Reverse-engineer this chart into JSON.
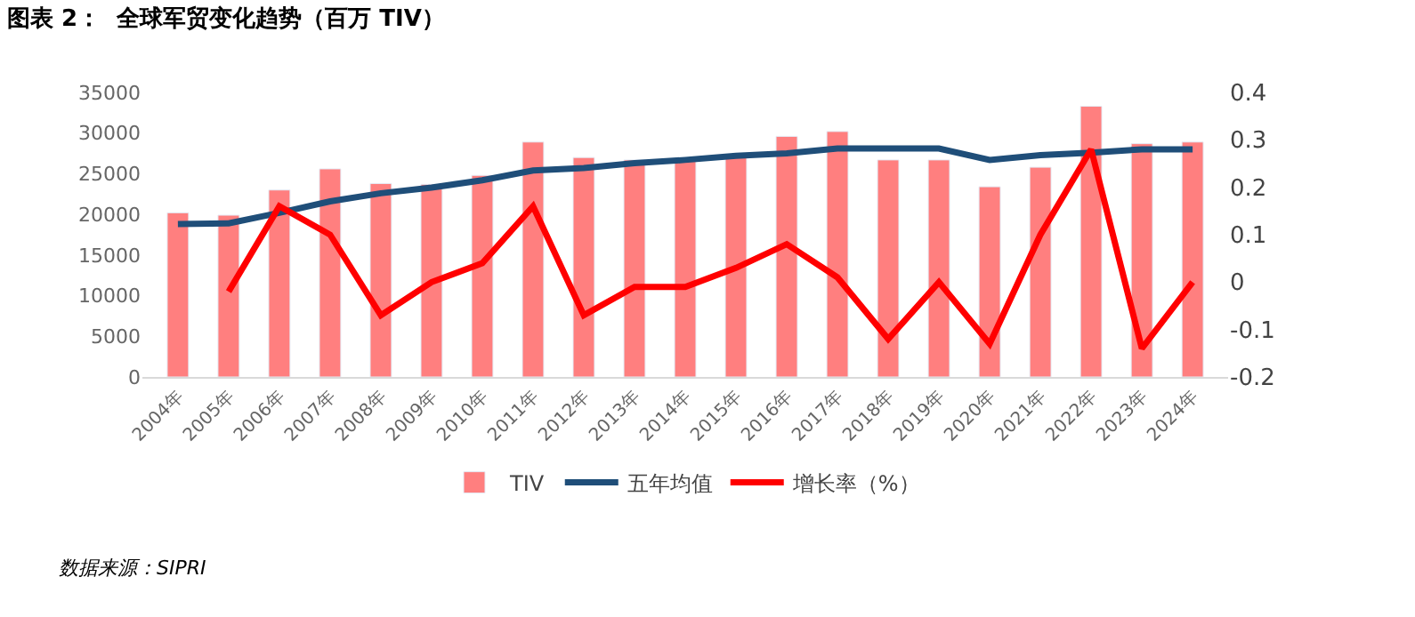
{
  "chart_data": {
    "type": "bar",
    "title": "图表 2：  全球军贸变化趋势（百万 TIV）",
    "categories": [
      "2004年",
      "2005年",
      "2006年",
      "2007年",
      "2008年",
      "2009年",
      "2010年",
      "2011年",
      "2012年",
      "2013年",
      "2014年",
      "2015年",
      "2016年",
      "2017年",
      "2018年",
      "2019年",
      "2020年",
      "2021年",
      "2022年",
      "2023年",
      "2024年"
    ],
    "series": [
      {
        "name": "TIV",
        "color": "#ff7f7f",
        "values": [
          20200,
          19900,
          23000,
          25600,
          23800,
          23700,
          24800,
          28900,
          27000,
          26700,
          26700,
          27300,
          29600,
          30200,
          26700,
          26700,
          23400,
          25800,
          33300,
          28700,
          28900
        ]
      },
      {
        "name": "五年均值",
        "type": "line",
        "color": "#1f4e79",
        "values": [
          18800,
          18900,
          20200,
          21600,
          22600,
          23300,
          24200,
          25400,
          25700,
          26300,
          26700,
          27200,
          27500,
          28100,
          28100,
          28100,
          26700,
          27300,
          27600,
          28000,
          28000
        ]
      },
      {
        "name": "增长率（%）",
        "type": "line",
        "axis": "y2",
        "color": "#ff0000",
        "values": [
          null,
          -0.02,
          0.16,
          0.1,
          -0.07,
          0.0,
          0.04,
          0.16,
          -0.07,
          -0.01,
          -0.01,
          0.03,
          0.08,
          0.01,
          -0.12,
          0.0,
          -0.13,
          0.1,
          0.28,
          -0.14,
          0.0
        ]
      }
    ],
    "ylim": [
      0,
      35000
    ],
    "yticks": [
      0,
      5000,
      10000,
      15000,
      20000,
      25000,
      30000,
      35000
    ],
    "y2lim": [
      -0.2,
      0.4
    ],
    "y2ticks": [
      -0.2,
      -0.1,
      0,
      0.1,
      0.2,
      0.3,
      0.4
    ],
    "legend": "bottom",
    "marker": "none",
    "line_style": "solid",
    "annotations": [
      "数据来源：SIPRI"
    ]
  }
}
